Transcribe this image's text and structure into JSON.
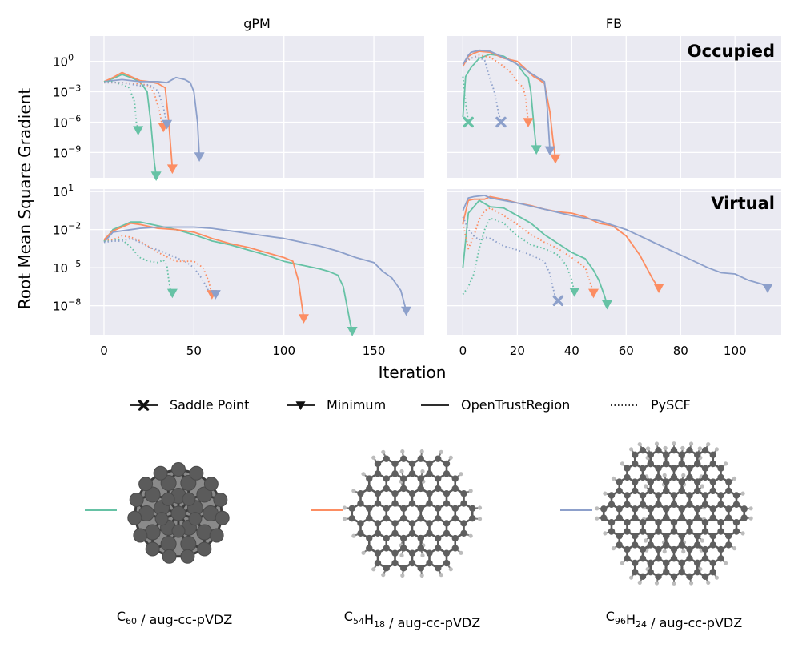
{
  "chart_data": {
    "type": "line",
    "y_scale": "log",
    "ylabel": "Root Mean Square Gradient",
    "xlabel": "Iteration",
    "columns": [
      "gPM",
      "FB"
    ],
    "rows": [
      "Occupied",
      "Virtual"
    ],
    "xticks": {
      "gPM": [
        "0",
        "50",
        "100",
        "150"
      ],
      "FB": [
        "0",
        "20",
        "40",
        "60",
        "80",
        "100"
      ]
    },
    "x_ranges": {
      "gPM": [
        -8,
        178
      ],
      "FB": [
        -6,
        117
      ]
    },
    "y_ranges": {
      "Occupied": [
        -11.5,
        2.5
      ],
      "Virtual": [
        -10.3,
        1.2
      ]
    },
    "yticks": {
      "Occupied": [
        {
          "exp": 0,
          "label": "0"
        },
        {
          "exp": -3,
          "label": "−3"
        },
        {
          "exp": -6,
          "label": "−6"
        },
        {
          "exp": -9,
          "label": "−9"
        }
      ],
      "Virtual": [
        {
          "exp": 1,
          "label": "1"
        },
        {
          "exp": -2,
          "label": "−2"
        },
        {
          "exp": -5,
          "label": "−5"
        },
        {
          "exp": -8,
          "label": "−8"
        }
      ]
    },
    "tick_base": "10",
    "colors": {
      "C60": "#66c2a5",
      "C54H18": "#fc8d62",
      "C96H24": "#8da0cb"
    },
    "series": [
      {
        "panel": "Occupied-gPM",
        "mol": "C60",
        "style": "solid",
        "end": "min",
        "x": [
          0,
          5,
          10,
          15,
          20,
          24,
          26,
          28,
          29
        ],
        "y": [
          -2.0,
          -1.7,
          -1.3,
          -1.6,
          -2.0,
          -3.0,
          -6.0,
          -10.0,
          -11.3
        ]
      },
      {
        "panel": "Occupied-gPM",
        "mol": "C54H18",
        "style": "solid",
        "end": "min",
        "x": [
          0,
          5,
          10,
          15,
          20,
          25,
          30,
          34,
          36,
          38
        ],
        "y": [
          -2.0,
          -1.6,
          -1.1,
          -1.5,
          -1.9,
          -2.0,
          -2.2,
          -2.6,
          -6.0,
          -10.6
        ]
      },
      {
        "panel": "Occupied-gPM",
        "mol": "C96H24",
        "style": "solid",
        "end": "min",
        "x": [
          0,
          5,
          10,
          20,
          30,
          35,
          40,
          45,
          48,
          50,
          52,
          53
        ],
        "y": [
          -2.0,
          -1.9,
          -1.8,
          -2.0,
          -2.0,
          -2.1,
          -1.6,
          -1.8,
          -2.1,
          -3.0,
          -6.0,
          -9.4
        ]
      },
      {
        "panel": "Occupied-gPM",
        "mol": "C60",
        "style": "dotted",
        "end": "min",
        "x": [
          0,
          5,
          10,
          14,
          17,
          18,
          19
        ],
        "y": [
          -2.0,
          -2.0,
          -2.3,
          -2.6,
          -4.0,
          -6.0,
          -6.8
        ]
      },
      {
        "panel": "Occupied-gPM",
        "mol": "C54H18",
        "style": "dotted",
        "end": "min",
        "x": [
          0,
          10,
          20,
          25,
          28,
          31,
          32,
          33
        ],
        "y": [
          -2.1,
          -2.1,
          -2.2,
          -2.4,
          -3.2,
          -5.0,
          -6.0,
          -6.5
        ]
      },
      {
        "panel": "Occupied-gPM",
        "mol": "C96H24",
        "style": "dotted",
        "end": "min",
        "x": [
          0,
          10,
          20,
          25,
          30,
          33,
          35
        ],
        "y": [
          -2.1,
          -2.1,
          -2.4,
          -2.3,
          -2.9,
          -4.5,
          -6.2
        ]
      },
      {
        "panel": "Occupied-FB",
        "mol": "C60",
        "style": "solid",
        "end": "min",
        "x": [
          0,
          1,
          3,
          6,
          10,
          15,
          20,
          23,
          24,
          25,
          26,
          27
        ],
        "y": [
          -5.5,
          -1.5,
          -0.6,
          0.3,
          0.7,
          0.5,
          -0.3,
          -1.4,
          -1.6,
          -3.0,
          -6.0,
          -8.7
        ]
      },
      {
        "panel": "Occupied-FB",
        "mol": "C54H18",
        "style": "solid",
        "end": "min",
        "x": [
          0,
          2,
          4,
          6,
          10,
          15,
          20,
          24,
          26,
          28,
          30,
          32,
          33,
          34
        ],
        "y": [
          -0.5,
          0.5,
          0.8,
          1.0,
          0.9,
          0.3,
          0.0,
          -1.0,
          -1.5,
          -1.8,
          -2.2,
          -5.0,
          -7.5,
          -9.6
        ]
      },
      {
        "panel": "Occupied-FB",
        "mol": "C96H24",
        "style": "solid",
        "end": "min",
        "x": [
          0,
          2,
          3,
          6,
          10,
          14,
          18,
          20,
          24,
          27,
          30,
          31,
          32
        ],
        "y": [
          -0.3,
          0.6,
          0.9,
          1.1,
          1.0,
          0.5,
          0.0,
          -0.3,
          -1.0,
          -1.5,
          -2.0,
          -4.5,
          -8.8
        ]
      },
      {
        "panel": "Occupied-FB",
        "mol": "C60",
        "style": "dotted",
        "end": "saddle",
        "x": [
          0,
          1,
          2
        ],
        "y": [
          -1.5,
          -4.0,
          -6.0
        ]
      },
      {
        "panel": "Occupied-FB",
        "mol": "C54H18",
        "style": "dotted",
        "end": "min",
        "x": [
          0,
          3,
          6,
          10,
          14,
          18,
          20,
          21,
          22,
          23,
          24
        ],
        "y": [
          -0.3,
          0.3,
          0.6,
          0.4,
          -0.3,
          -1.2,
          -2.0,
          -2.3,
          -2.5,
          -3.5,
          -6.0
        ]
      },
      {
        "panel": "Occupied-FB",
        "mol": "C96H24",
        "style": "dotted",
        "end": "saddle",
        "x": [
          0,
          2,
          5,
          8,
          10,
          11,
          12,
          13,
          14
        ],
        "y": [
          -0.3,
          0.2,
          0.5,
          0.1,
          -1.8,
          -2.5,
          -3.5,
          -5.0,
          -6.0
        ]
      },
      {
        "panel": "Virtual-gPM",
        "mol": "C60",
        "style": "solid",
        "end": "min",
        "x": [
          0,
          5,
          10,
          15,
          20,
          30,
          40,
          50,
          60,
          70,
          80,
          90,
          100,
          110,
          120,
          125,
          130,
          133,
          135,
          137,
          138
        ],
        "y": [
          -2.9,
          -2.0,
          -1.7,
          -1.4,
          -1.4,
          -1.7,
          -2.0,
          -2.4,
          -2.9,
          -3.2,
          -3.6,
          -4.0,
          -4.5,
          -4.8,
          -5.1,
          -5.3,
          -5.6,
          -6.5,
          -8.0,
          -9.5,
          -10.0
        ]
      },
      {
        "panel": "Virtual-gPM",
        "mol": "C54H18",
        "style": "solid",
        "end": "min",
        "x": [
          0,
          5,
          10,
          15,
          20,
          30,
          40,
          50,
          60,
          70,
          80,
          90,
          100,
          105,
          108,
          110,
          111
        ],
        "y": [
          -2.8,
          -2.1,
          -1.8,
          -1.5,
          -1.6,
          -1.9,
          -2.0,
          -2.2,
          -2.7,
          -3.1,
          -3.4,
          -3.8,
          -4.2,
          -4.5,
          -6.0,
          -8.0,
          -9.0
        ]
      },
      {
        "panel": "Virtual-gPM",
        "mol": "C96H24",
        "style": "solid",
        "end": "min",
        "x": [
          0,
          5,
          10,
          20,
          30,
          40,
          50,
          60,
          70,
          80,
          90,
          100,
          110,
          120,
          130,
          140,
          150,
          155,
          160,
          165,
          168
        ],
        "y": [
          -3.0,
          -2.2,
          -2.1,
          -1.9,
          -1.8,
          -1.8,
          -1.8,
          -1.9,
          -2.1,
          -2.3,
          -2.5,
          -2.7,
          -3.0,
          -3.3,
          -3.7,
          -4.2,
          -4.6,
          -5.3,
          -5.8,
          -6.8,
          -8.4
        ]
      },
      {
        "panel": "Virtual-gPM",
        "mol": "C60",
        "style": "dotted",
        "end": "min",
        "x": [
          0,
          5,
          10,
          15,
          20,
          25,
          30,
          33,
          35,
          36,
          37,
          38
        ],
        "y": [
          -2.9,
          -2.8,
          -2.8,
          -3.4,
          -4.2,
          -4.5,
          -4.6,
          -4.4,
          -4.8,
          -6.0,
          -6.8,
          -7.0
        ]
      },
      {
        "panel": "Virtual-gPM",
        "mol": "C54H18",
        "style": "dotted",
        "end": "min",
        "x": [
          0,
          5,
          10,
          15,
          20,
          30,
          40,
          45,
          50,
          52,
          55,
          58,
          60
        ],
        "y": [
          -2.8,
          -2.8,
          -2.5,
          -2.6,
          -2.9,
          -3.8,
          -4.5,
          -4.5,
          -4.5,
          -4.7,
          -5.0,
          -6.0,
          -7.1
        ]
      },
      {
        "panel": "Virtual-gPM",
        "mol": "C96H24",
        "style": "dotted",
        "end": "min",
        "x": [
          0,
          5,
          10,
          15,
          20,
          25,
          30,
          35,
          40,
          45,
          50,
          55,
          58,
          60,
          62
        ],
        "y": [
          -3.0,
          -2.9,
          -2.9,
          -2.7,
          -3.0,
          -3.4,
          -3.6,
          -3.9,
          -4.2,
          -4.5,
          -5.0,
          -6.0,
          -6.8,
          -7.0,
          -7.1
        ]
      },
      {
        "panel": "Virtual-FB",
        "mol": "C60",
        "style": "solid",
        "end": "min",
        "x": [
          0,
          2,
          4,
          6,
          10,
          15,
          20,
          25,
          30,
          35,
          40,
          45,
          48,
          50,
          52,
          53
        ],
        "y": [
          -5.0,
          -0.7,
          -0.2,
          0.3,
          -0.2,
          -0.3,
          -0.9,
          -1.5,
          -2.4,
          -3.1,
          -3.8,
          -4.3,
          -5.2,
          -6.0,
          -7.2,
          -7.9
        ]
      },
      {
        "panel": "Virtual-FB",
        "mol": "C54H18",
        "style": "solid",
        "end": "min",
        "x": [
          0,
          2,
          4,
          8,
          10,
          15,
          20,
          25,
          30,
          35,
          40,
          45,
          50,
          55,
          60,
          65,
          68,
          70,
          72
        ],
        "y": [
          -1.5,
          0.3,
          0.4,
          0.4,
          0.6,
          0.4,
          0.1,
          -0.1,
          -0.4,
          -0.6,
          -0.7,
          -1.0,
          -1.5,
          -1.7,
          -2.5,
          -4.0,
          -5.2,
          -6.0,
          -6.6
        ]
      },
      {
        "panel": "Virtual-FB",
        "mol": "C96H24",
        "style": "solid",
        "end": "min",
        "x": [
          0,
          2,
          4,
          8,
          10,
          15,
          20,
          30,
          40,
          50,
          60,
          70,
          80,
          90,
          95,
          100,
          105,
          110,
          112
        ],
        "y": [
          -0.5,
          0.5,
          0.6,
          0.7,
          0.5,
          0.3,
          0.1,
          -0.4,
          -0.9,
          -1.3,
          -2.0,
          -3.0,
          -4.0,
          -5.0,
          -5.4,
          -5.5,
          -6.0,
          -6.3,
          -6.6
        ]
      },
      {
        "panel": "Virtual-FB",
        "mol": "C60",
        "style": "dotted",
        "end": "min",
        "x": [
          0,
          2,
          4,
          6,
          8,
          10,
          15,
          20,
          25,
          30,
          35,
          38,
          40,
          41
        ],
        "y": [
          -7.1,
          -6.5,
          -5.5,
          -3.5,
          -2.0,
          -1.1,
          -1.5,
          -2.5,
          -3.2,
          -3.5,
          -4.0,
          -4.8,
          -6.0,
          -6.9
        ]
      },
      {
        "panel": "Virtual-FB",
        "mol": "C54H18",
        "style": "dotted",
        "end": "min",
        "x": [
          0,
          2,
          4,
          6,
          8,
          10,
          15,
          20,
          25,
          30,
          35,
          40,
          45,
          47,
          48
        ],
        "y": [
          -1.5,
          -3.5,
          -2.5,
          -1.2,
          -0.5,
          -0.3,
          -0.9,
          -1.6,
          -2.4,
          -3.0,
          -3.5,
          -4.2,
          -5.0,
          -6.3,
          -7.0
        ]
      },
      {
        "panel": "Virtual-FB",
        "mol": "C96H24",
        "style": "dotted",
        "end": "saddle",
        "x": [
          0,
          2,
          4,
          6,
          8,
          10,
          15,
          20,
          25,
          30,
          32,
          33,
          34,
          35
        ],
        "y": [
          -1.0,
          -2.0,
          -2.5,
          -2.8,
          -2.6,
          -2.7,
          -3.3,
          -3.6,
          -4.0,
          -4.5,
          -5.5,
          -6.5,
          -7.3,
          -7.6
        ]
      }
    ],
    "legend": [
      {
        "label": "Saddle Point",
        "marker": "x",
        "line": "solid"
      },
      {
        "label": "Minimum",
        "marker": "v",
        "line": "solid"
      },
      {
        "label": "OpenTrustRegion",
        "marker": "",
        "line": "solid"
      },
      {
        "label": "PySCF",
        "marker": "",
        "line": "dotted"
      }
    ],
    "molecules": [
      {
        "key": "C60",
        "parts": [
          [
            "C",
            "60"
          ]
        ],
        "basis": " / aug-cc-pVDZ"
      },
      {
        "key": "C54H18",
        "parts": [
          [
            "C",
            "54"
          ],
          [
            "H",
            "18"
          ]
        ],
        "basis": " / aug-cc-pVDZ"
      },
      {
        "key": "C96H24",
        "parts": [
          [
            "C",
            "96"
          ],
          [
            "H",
            "24"
          ]
        ],
        "basis": " / aug-cc-pVDZ"
      }
    ]
  }
}
